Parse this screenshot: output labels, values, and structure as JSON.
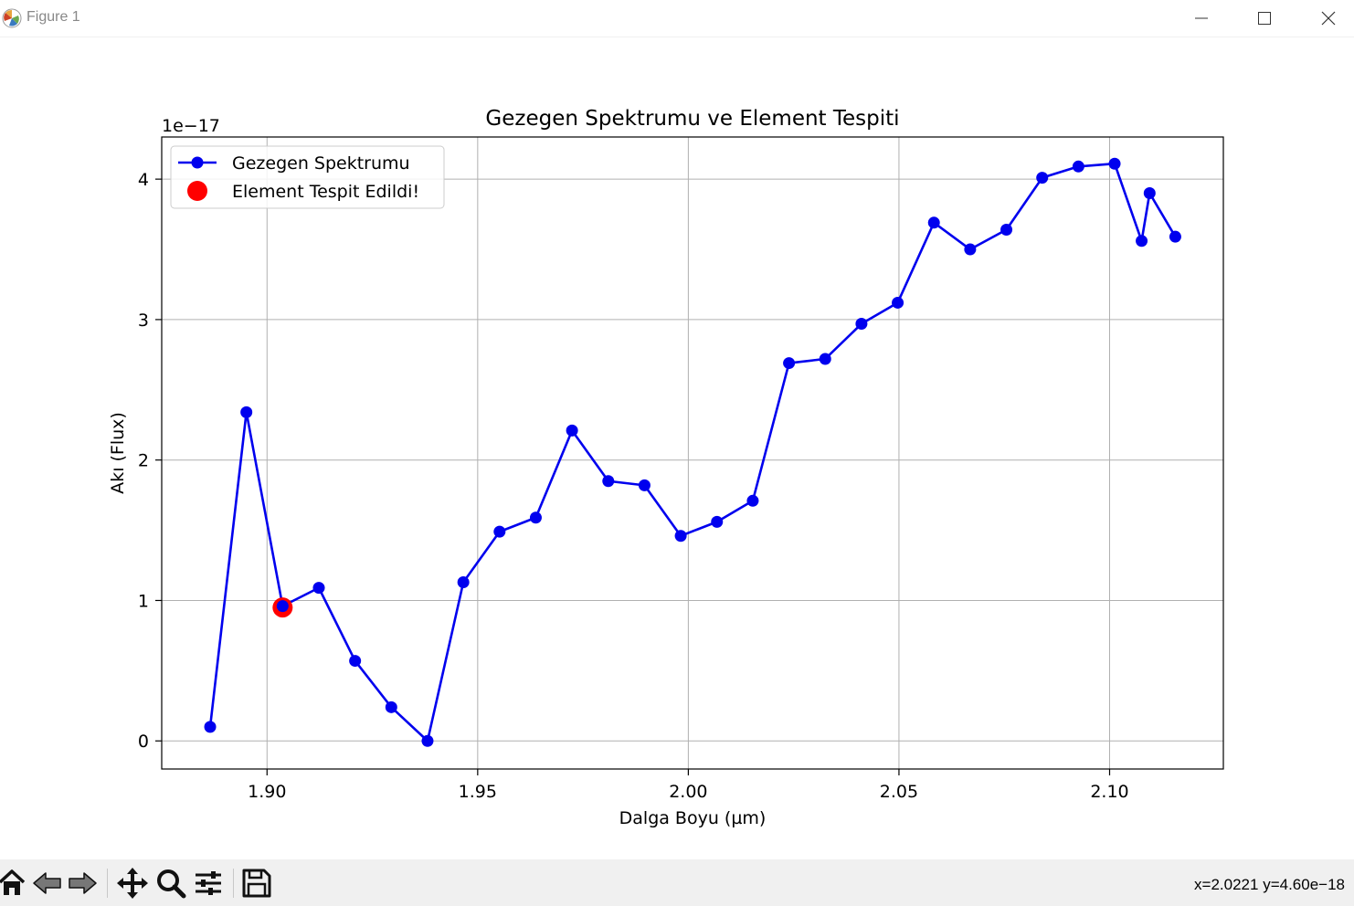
{
  "window": {
    "title": "Figure 1",
    "icon": "matplotlib-icon",
    "buttons": [
      "minimize-icon",
      "maximize-icon",
      "close-icon"
    ]
  },
  "toolbar": {
    "tools": [
      "home-icon",
      "back-icon",
      "forward-icon",
      "pan-icon",
      "zoom-icon",
      "configure-icon",
      "save-icon"
    ],
    "coords": "x=2.0221 y=4.60e−18"
  },
  "chart_data": {
    "type": "line",
    "title": "Gezegen Spektrumu ve Element Tespiti",
    "xlabel": "Dalga Boyu (µm)",
    "ylabel": "Akı (Flux)",
    "y_offset_label": "1e−17",
    "xlim": [
      1.875,
      2.127
    ],
    "ylim": [
      -0.2,
      4.3
    ],
    "xticks": [
      "1.90",
      "1.95",
      "2.00",
      "2.05",
      "2.10"
    ],
    "yticks": [
      "0",
      "1",
      "2",
      "3",
      "4"
    ],
    "grid": true,
    "legend_position": "upper left",
    "series": [
      {
        "name": "Gezegen Spektrumu",
        "color": "#0000ee",
        "marker": "circle",
        "x": [
          1.8865,
          1.8951,
          1.9037,
          1.9123,
          1.9209,
          1.9295,
          1.9381,
          1.9466,
          1.9552,
          1.9638,
          1.9724,
          1.981,
          1.9896,
          1.9982,
          2.0068,
          2.0153,
          2.0239,
          2.0325,
          2.0411,
          2.0497,
          2.0583,
          2.0669,
          2.0755,
          2.084,
          2.0926,
          2.1012,
          2.1076,
          2.1095,
          2.1156
        ],
        "y": [
          0.1,
          2.34,
          0.96,
          1.09,
          0.57,
          0.24,
          0.0,
          1.13,
          1.49,
          1.59,
          2.21,
          1.85,
          1.82,
          1.46,
          1.56,
          1.71,
          2.69,
          2.72,
          2.97,
          3.12,
          3.69,
          3.5,
          3.64,
          4.01,
          4.09,
          4.11,
          3.56,
          3.9,
          3.59
        ]
      },
      {
        "name": "Element Tespit Edildi!",
        "color": "#ff0000",
        "marker": "circle",
        "x": [
          1.9037
        ],
        "y": [
          0.95
        ]
      }
    ]
  }
}
